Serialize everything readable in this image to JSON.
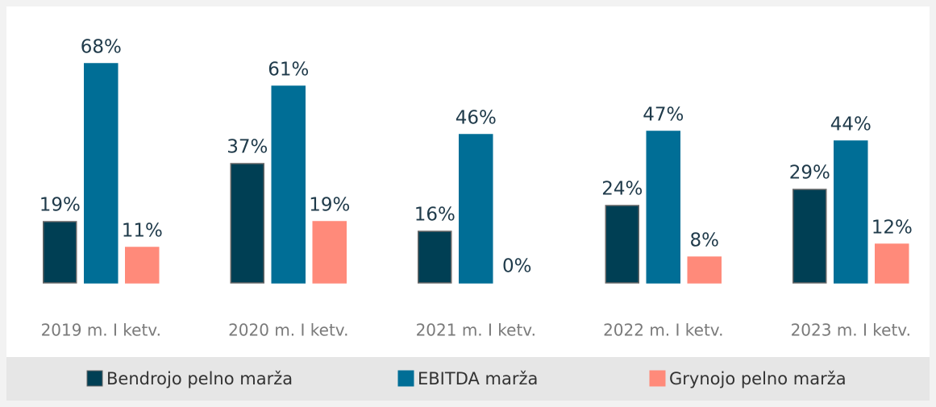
{
  "chart_data": {
    "type": "bar",
    "categories": [
      "2019 m. I ketv.",
      "2020 m. I ketv.",
      "2021 m. I ketv.",
      "2022 m. I ketv.",
      "2023 m. I ketv."
    ],
    "series": [
      {
        "name": "Bendrojo pelno marža",
        "color": "#003f54",
        "values": [
          19,
          37,
          16,
          24,
          29
        ],
        "value_labels": [
          "19%",
          "37%",
          "16%",
          "24%",
          "29%"
        ]
      },
      {
        "name": "EBITDA marža",
        "color": "#006e96",
        "values": [
          68,
          61,
          46,
          47,
          44
        ],
        "value_labels": [
          "68%",
          "61%",
          "46%",
          "47%",
          "44%"
        ]
      },
      {
        "name": "Grynojo pelno marža",
        "color": "#ff8a7a",
        "values": [
          11,
          19,
          0,
          8,
          12
        ],
        "value_labels": [
          "11%",
          "19%",
          "0%",
          "8%",
          "12%"
        ]
      }
    ],
    "legend": "bottom"
  }
}
